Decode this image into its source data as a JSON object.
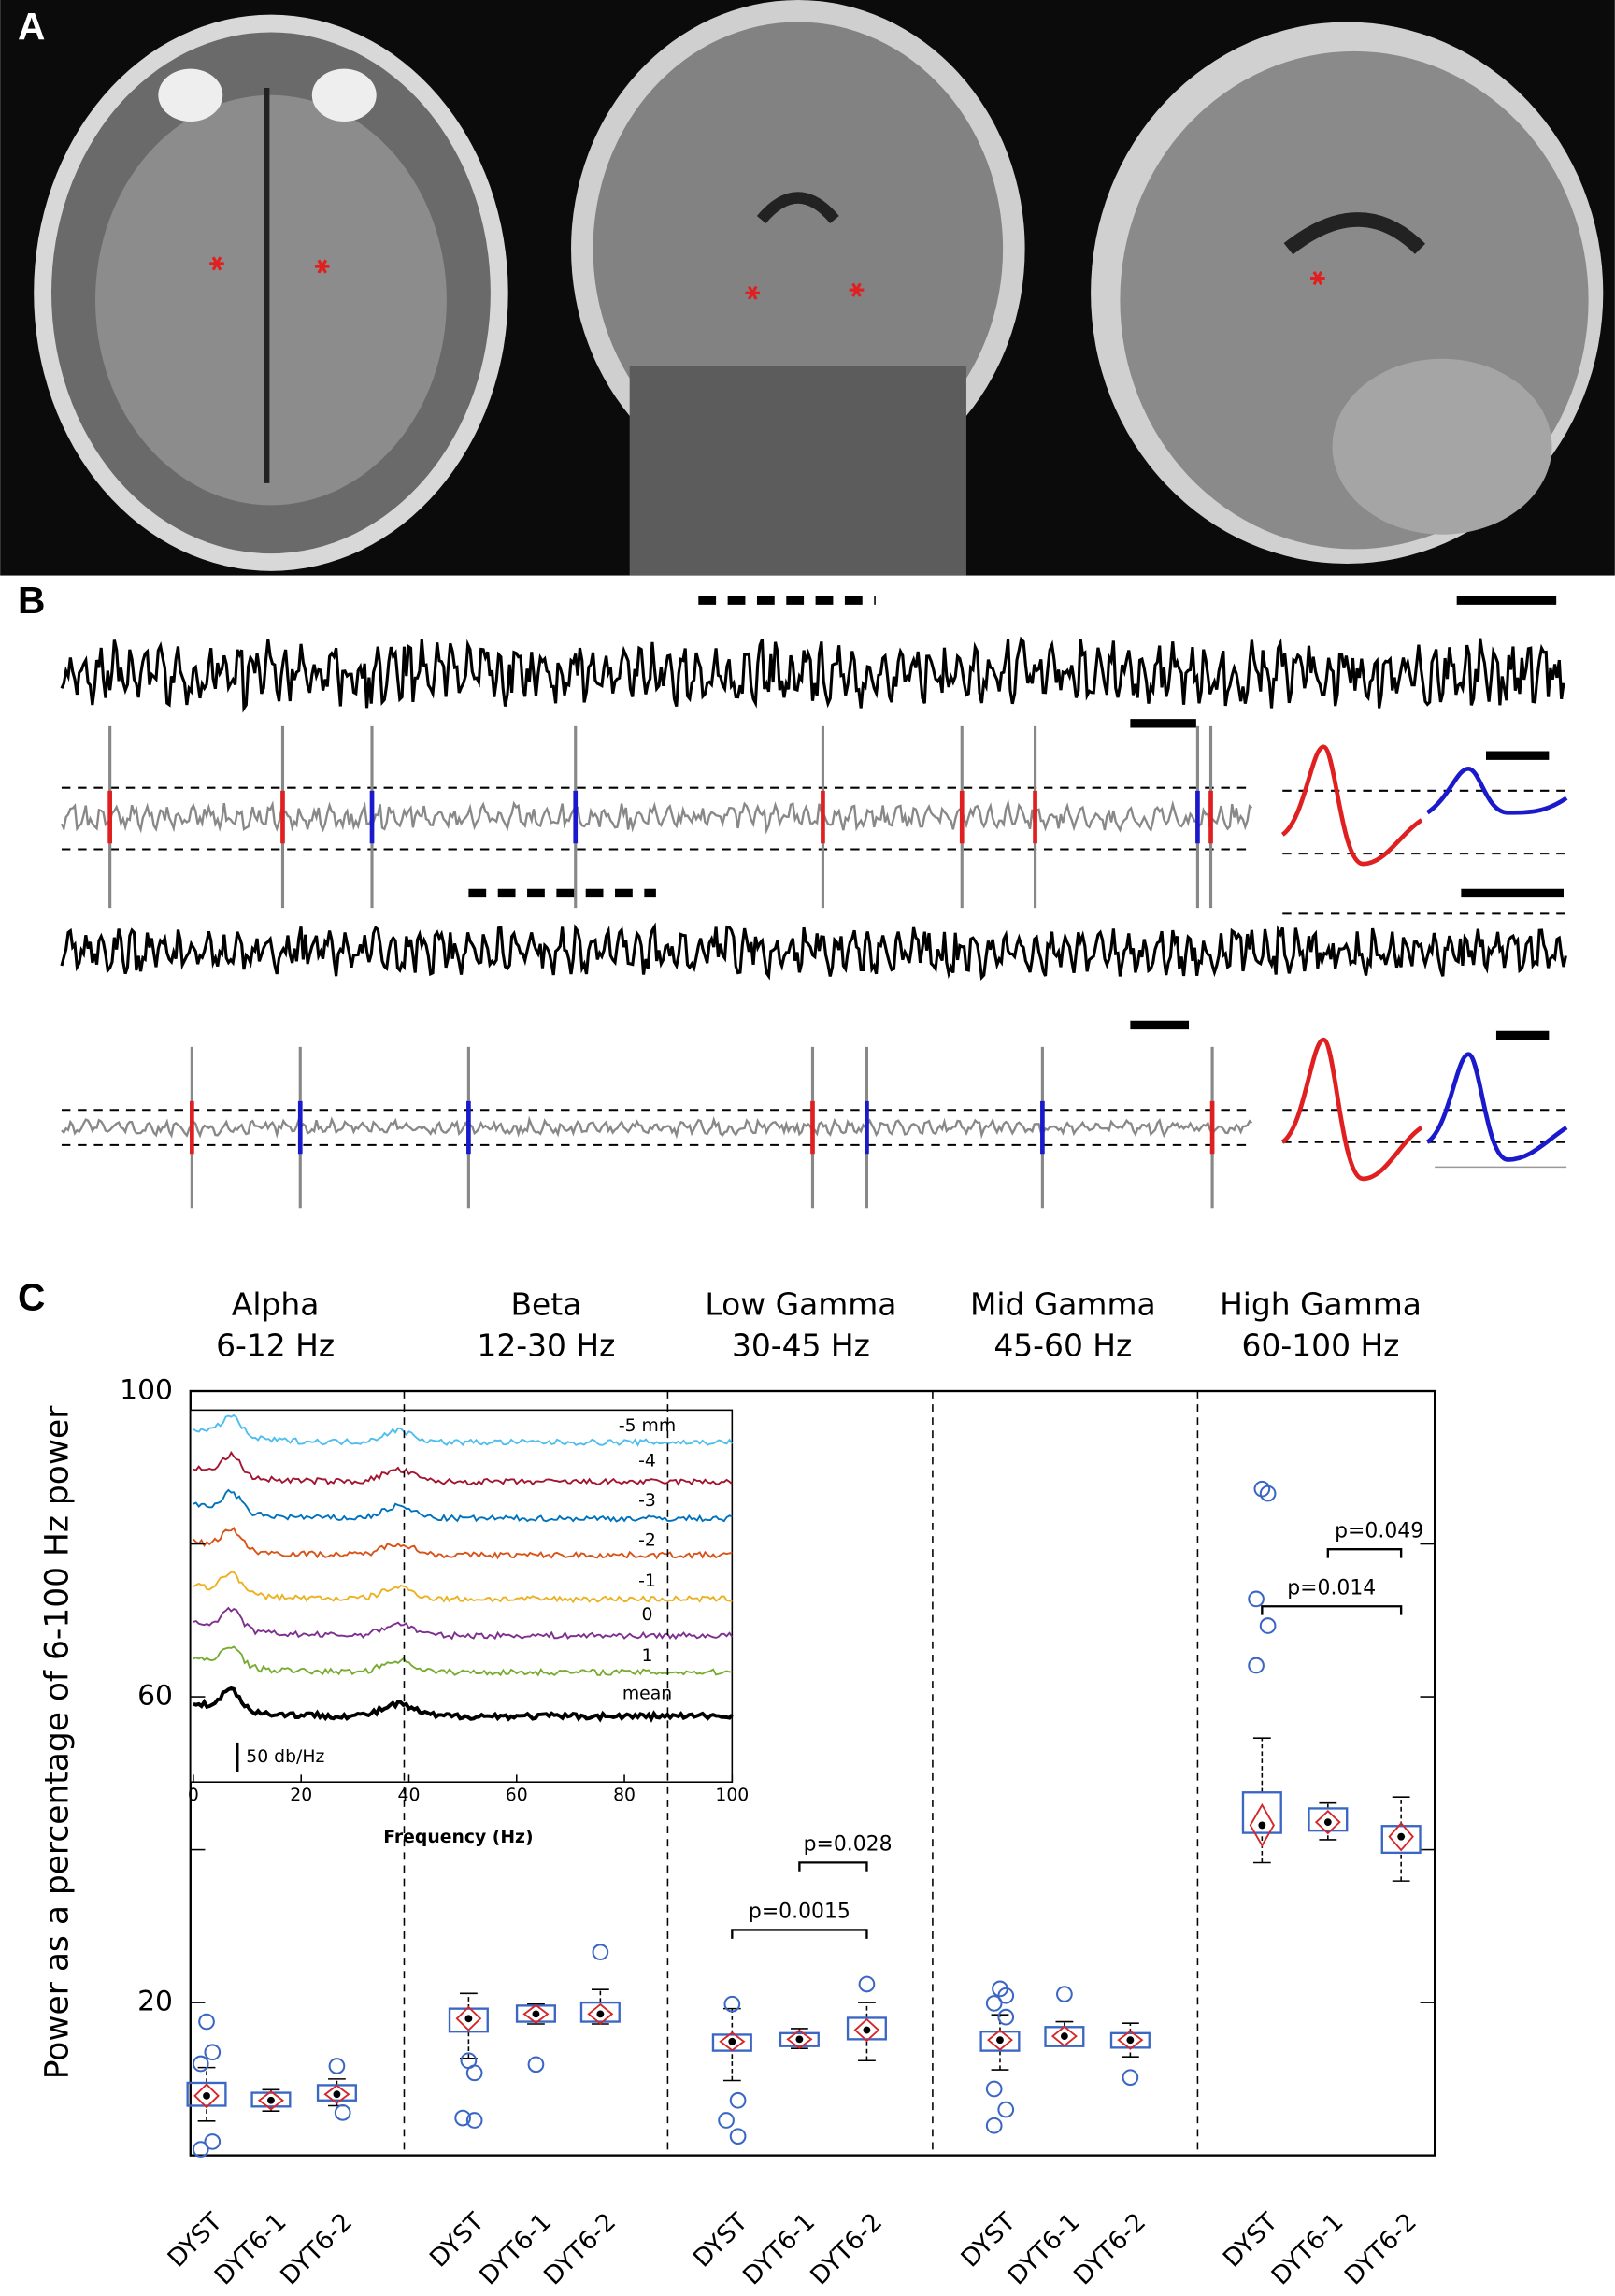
{
  "panel_labels": [
    "A",
    "B",
    "C"
  ],
  "chart_data": {
    "type": "box",
    "ylabel": "Power as a percentage of 6-100 Hz power",
    "ylim": [
      0,
      100
    ],
    "yticks": [
      20,
      60,
      100
    ],
    "yminorticks": [
      40,
      80
    ],
    "box_color": "#3a66c4",
    "mean_color": "#d62728",
    "bands": [
      {
        "name": "Alpha",
        "range": "6-12 Hz",
        "groups": [
          {
            "name": "DYST",
            "whislo": 4.5,
            "q1": 6.5,
            "q3": 9.5,
            "whishi": 11.5,
            "mean": 7.8,
            "outliers": [
              17.5,
              13.5,
              12,
              1.8,
              0.8
            ]
          },
          {
            "name": "DYT6-1",
            "whislo": 5.8,
            "q1": 6.4,
            "q3": 8.2,
            "whishi": 8.6,
            "mean": 7.2,
            "outliers": []
          },
          {
            "name": "DYT6-2",
            "whislo": 6.5,
            "q1": 7.2,
            "q3": 9.2,
            "whishi": 10,
            "mean": 8,
            "outliers": [
              11.7,
              5.6
            ]
          }
        ],
        "comparisons": []
      },
      {
        "name": "Beta",
        "range": "12-30 Hz",
        "groups": [
          {
            "name": "DYST",
            "whislo": 12.7,
            "q1": 16.2,
            "q3": 19.2,
            "whishi": 21.2,
            "mean": 17.9,
            "outliers": [
              12.4,
              10.8,
              4.9,
              4.6
            ]
          },
          {
            "name": "DYT6-1",
            "whislo": 17.2,
            "q1": 17.5,
            "q3": 19.6,
            "whishi": 19.8,
            "mean": 18.5,
            "outliers": [
              11.9
            ]
          },
          {
            "name": "DYT6-2",
            "whislo": 17.2,
            "q1": 17.5,
            "q3": 20,
            "whishi": 21.7,
            "mean": 18.5,
            "outliers": [
              26.6
            ]
          }
        ],
        "comparisons": []
      },
      {
        "name": "Low Gamma",
        "range": "30-45 Hz",
        "groups": [
          {
            "name": "DYST",
            "whislo": 9.8,
            "q1": 13.7,
            "q3": 15.8,
            "whishi": 19.2,
            "mean": 14.9,
            "outliers": [
              19.8,
              7.2,
              4.6,
              2.5
            ]
          },
          {
            "name": "DYT6-1",
            "whislo": 14,
            "q1": 14.3,
            "q3": 16,
            "whishi": 16.6,
            "mean": 15.2,
            "outliers": []
          },
          {
            "name": "DYT6-2",
            "whislo": 12.4,
            "q1": 15.2,
            "q3": 18,
            "whishi": 20,
            "mean": 16.4,
            "outliers": [
              22.4
            ]
          }
        ],
        "comparisons": [
          {
            "text": "p=0.0015",
            "from": "DYST",
            "to": "DYT6-2"
          },
          {
            "text": "p=0.028",
            "from": "DYT6-1",
            "to": "DYT6-2"
          }
        ]
      },
      {
        "name": "Mid Gamma",
        "range": "45-60 Hz",
        "groups": [
          {
            "name": "DYST",
            "whislo": 11.2,
            "q1": 13.7,
            "q3": 16.2,
            "whishi": 18.4,
            "mean": 15.1,
            "outliers": [
              21.8,
              20.9,
              19.9,
              18.1,
              8.7,
              6,
              3.9
            ]
          },
          {
            "name": "DYT6-1",
            "whislo": 14.3,
            "q1": 14.3,
            "q3": 16.8,
            "whishi": 17.5,
            "mean": 15.6,
            "outliers": [
              21.1
            ]
          },
          {
            "name": "DYT6-2",
            "whislo": 12.9,
            "q1": 14.1,
            "q3": 16,
            "whishi": 17.3,
            "mean": 15.1,
            "outliers": [
              10.2
            ]
          }
        ],
        "comparisons": []
      },
      {
        "name": "High Gamma",
        "range": "60-100 Hz",
        "groups": [
          {
            "name": "DYST",
            "whislo": 38.3,
            "q1": 42.2,
            "q3": 47.5,
            "whishi": 54.6,
            "mean": 43.2,
            "outliers": [
              87.2,
              86.6,
              72.8,
              69.3,
              64.1
            ]
          },
          {
            "name": "DYT6-1",
            "whislo": 41.3,
            "q1": 42.5,
            "q3": 45.4,
            "whishi": 46.1,
            "mean": 43.6,
            "outliers": []
          },
          {
            "name": "DYT6-2",
            "whislo": 35.9,
            "q1": 39.6,
            "q3": 43.1,
            "whishi": 46.9,
            "mean": 41.7,
            "outliers": []
          }
        ],
        "comparisons": [
          {
            "text": "p=0.014",
            "from": "DYST",
            "to": "DYT6-2"
          },
          {
            "text": "p=0.049",
            "from": "DYT6-1",
            "to": "DYT6-2"
          }
        ]
      }
    ],
    "inset": {
      "xlabel": "Frequency (Hz)",
      "xlim": [
        0,
        100
      ],
      "xticks": [
        0,
        20,
        40,
        60,
        80,
        100
      ],
      "scale_bar": "50 db/Hz",
      "traces": [
        {
          "name": "-5 mm",
          "color": "#4dbeee"
        },
        {
          "name": "-4",
          "color": "#a2142f"
        },
        {
          "name": "-3",
          "color": "#0072bd"
        },
        {
          "name": "-2",
          "color": "#d95319"
        },
        {
          "name": "-1",
          "color": "#edb120"
        },
        {
          "name": "0",
          "color": "#7e2f8e"
        },
        {
          "name": "1",
          "color": "#77ac30"
        },
        {
          "name": "mean",
          "color": "#000000"
        }
      ]
    }
  }
}
